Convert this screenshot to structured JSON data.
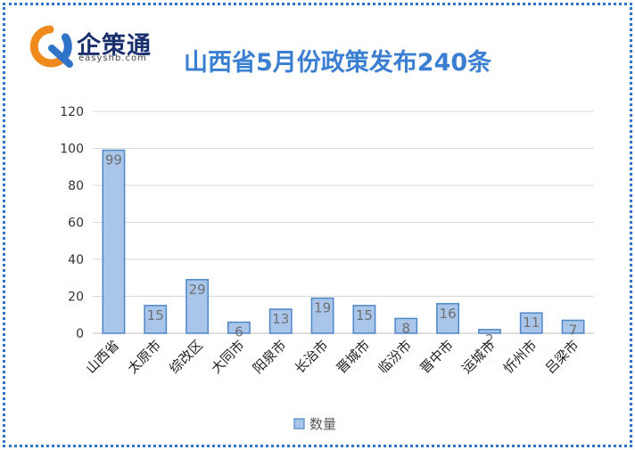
{
  "header": {
    "logo_name": "企策通",
    "logo_domain": "easyshb.com",
    "title": "山西省5月份政策发布240条"
  },
  "colors": {
    "frame": "#2f74c9",
    "title": "#3a7fd1",
    "bar_fill": "#a9c6ea",
    "bar_stroke": "#4f86c6",
    "logo_orange": "#f08a1d",
    "logo_blue": "#2f74c9"
  },
  "chart_data": {
    "type": "bar",
    "categories": [
      "山西省",
      "太原市",
      "综改区",
      "大同市",
      "阳泉市",
      "长治市",
      "晋城市",
      "临汾市",
      "晋中市",
      "运城市",
      "忻州市",
      "吕梁市"
    ],
    "series": [
      {
        "name": "数量",
        "values": [
          99,
          15,
          29,
          6,
          13,
          19,
          15,
          8,
          16,
          2,
          11,
          7
        ]
      }
    ],
    "ylim": [
      0,
      120
    ],
    "yticks": [
      0,
      20,
      40,
      60,
      80,
      100,
      120
    ],
    "grid": true,
    "legend": "bottom",
    "data_labels": true
  }
}
